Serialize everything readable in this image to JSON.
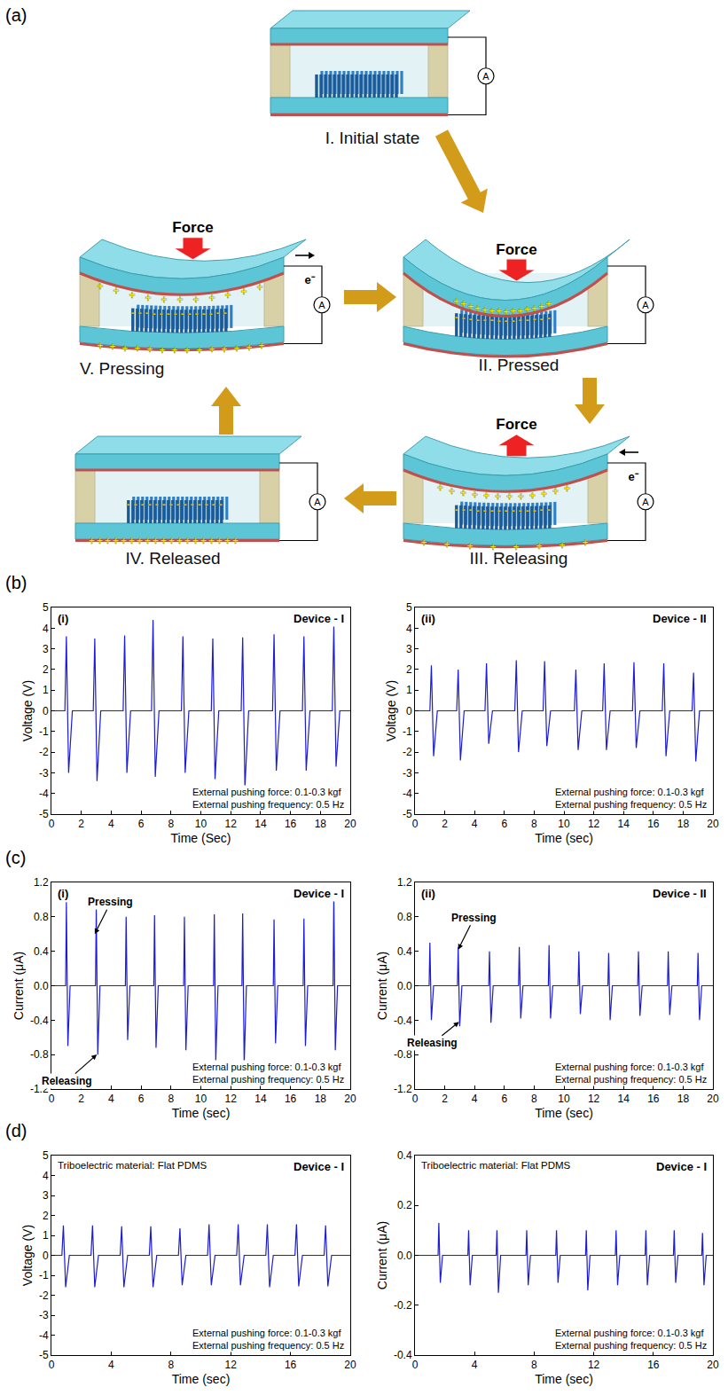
{
  "diagram": {
    "panel": "(a)",
    "stages": [
      {
        "label": "I. Initial state"
      },
      {
        "label": "II. Pressed"
      },
      {
        "label": "III. Releasing"
      },
      {
        "label": "IV. Released"
      },
      {
        "label": "V. Pressing"
      }
    ],
    "force_label": "Force",
    "ammeter_label": "A",
    "electron_label": "e⁻",
    "charge_signs": {
      "positive": "+",
      "negative": "-"
    }
  },
  "chart_data": [
    {
      "panel": "(b)",
      "sublabel": "(i)",
      "device_label": "Device - I",
      "type": "line",
      "color": "#1c1cd4",
      "grid": false,
      "x_label": "Time (Sec)",
      "y_label": "Voltage (V)",
      "xlim": [
        0,
        20
      ],
      "xticks": [
        0,
        2,
        4,
        6,
        8,
        10,
        12,
        14,
        16,
        18,
        20
      ],
      "ylim": [
        -5,
        5
      ],
      "yticks": [
        -5,
        -4,
        -3,
        -2,
        -1,
        0,
        1,
        2,
        3,
        4,
        5
      ],
      "notes": [
        "External pushing force: 0.1-0.3 kgf",
        "External pushing frequency: 0.5 Hz"
      ],
      "x": [
        0,
        0.9,
        1.0,
        1.15,
        1.4,
        2.8,
        2.9,
        3.05,
        3.3,
        4.8,
        4.9,
        5.05,
        5.3,
        6.7,
        6.8,
        6.95,
        7.2,
        8.7,
        8.8,
        8.95,
        9.2,
        10.7,
        10.8,
        10.95,
        11.2,
        12.7,
        12.8,
        12.95,
        13.2,
        14.8,
        14.9,
        15.05,
        15.3,
        16.8,
        16.9,
        17.05,
        17.3,
        18.8,
        18.9,
        19.05,
        19.3,
        20
      ],
      "values": [
        0,
        0,
        3.6,
        -3.0,
        0,
        0,
        3.5,
        -3.4,
        0,
        0,
        3.65,
        -3.0,
        0,
        0,
        4.4,
        -3.2,
        0,
        0,
        3.6,
        -3.0,
        0,
        0,
        3.5,
        -3.3,
        0,
        0,
        3.55,
        -3.7,
        0,
        0,
        3.7,
        -2.9,
        0,
        0,
        3.6,
        -2.9,
        0,
        0,
        4.1,
        -2.7,
        0,
        0
      ]
    },
    {
      "sublabel": "(ii)",
      "device_label": "Device - II",
      "type": "line",
      "color": "#1c1cd4",
      "grid": false,
      "x_label": "Time (sec)",
      "y_label": "Voltage (V)",
      "xlim": [
        0,
        20
      ],
      "xticks": [
        0,
        2,
        4,
        6,
        8,
        10,
        12,
        14,
        16,
        18,
        20
      ],
      "ylim": [
        -5,
        5
      ],
      "yticks": [
        -5,
        -4,
        -3,
        -2,
        -1,
        0,
        1,
        2,
        3,
        4,
        5
      ],
      "notes": [
        "External pushing force: 0.1-0.3 kgf",
        "External pushing frequency: 0.5 Hz"
      ],
      "x": [
        0,
        1.0,
        1.1,
        1.25,
        1.5,
        2.8,
        2.9,
        3.05,
        3.3,
        4.7,
        4.8,
        4.95,
        5.2,
        6.7,
        6.8,
        6.95,
        7.2,
        8.6,
        8.7,
        8.85,
        9.1,
        10.7,
        10.8,
        10.95,
        11.2,
        12.6,
        12.7,
        12.85,
        13.1,
        14.6,
        14.7,
        14.85,
        15.1,
        16.6,
        16.7,
        16.85,
        17.1,
        18.6,
        18.7,
        18.85,
        19.1,
        20
      ],
      "values": [
        0,
        0,
        2.2,
        -2.2,
        0,
        0,
        2.0,
        -2.4,
        0,
        0,
        2.3,
        -1.6,
        0,
        0,
        2.45,
        -2.0,
        0,
        0,
        2.4,
        -1.7,
        0,
        0,
        2.0,
        -1.9,
        0,
        0,
        2.3,
        -1.9,
        0,
        0,
        2.35,
        -1.8,
        0,
        0,
        2.3,
        -2.2,
        0,
        0,
        1.85,
        -2.45,
        0,
        0
      ]
    },
    {
      "panel": "(c)",
      "sublabel": "(i)",
      "device_label": "Device - I",
      "type": "line",
      "color": "#1c1cd4",
      "grid": false,
      "x_label": "Time (sec)",
      "y_label": "Current (μA)",
      "xlim": [
        0,
        20
      ],
      "xticks": [
        0,
        2,
        4,
        6,
        8,
        10,
        12,
        14,
        16,
        18,
        20
      ],
      "ylim": [
        -1.2,
        1.2
      ],
      "yticks": [
        -1.2,
        -0.8,
        -0.4,
        {
          "value": 0,
          "label": "0.0"
        },
        0.4,
        0.8,
        1.2
      ],
      "annotations": [
        "Pressing",
        "Releasing"
      ],
      "notes": [
        "External pushing force: 0.1-0.3 kgf",
        "External pushing frequency: 0.5 Hz"
      ],
      "x": [
        0,
        0.95,
        1.0,
        1.1,
        1.25,
        2.95,
        3.0,
        3.1,
        3.25,
        4.95,
        5.0,
        5.1,
        5.25,
        6.85,
        6.9,
        7.0,
        7.15,
        8.85,
        8.9,
        9.0,
        9.15,
        10.85,
        10.9,
        11.0,
        11.15,
        12.75,
        12.8,
        12.9,
        13.05,
        14.85,
        14.9,
        15.0,
        15.15,
        16.85,
        16.9,
        17.0,
        17.15,
        18.85,
        18.9,
        19.0,
        19.15,
        20
      ],
      "values": [
        0,
        0,
        0.97,
        -0.7,
        0,
        0,
        0.9,
        -0.8,
        0,
        0,
        0.8,
        -0.63,
        0,
        0,
        0.82,
        -0.72,
        0,
        0,
        0.8,
        -0.75,
        0,
        0,
        0.83,
        -0.87,
        0,
        0,
        0.84,
        -0.93,
        0,
        0,
        0.77,
        -0.67,
        0,
        0,
        0.78,
        -0.7,
        0,
        0,
        1.05,
        -0.75,
        0,
        0
      ]
    },
    {
      "sublabel": "(ii)",
      "device_label": "Device - II",
      "type": "line",
      "color": "#1c1cd4",
      "grid": false,
      "x_label": "Time (sec)",
      "y_label": "Current (μA)",
      "xlim": [
        0,
        20
      ],
      "xticks": [
        0,
        2,
        4,
        6,
        8,
        10,
        12,
        14,
        16,
        18,
        20
      ],
      "ylim": [
        -1.2,
        1.2
      ],
      "yticks": [
        -1.2,
        -0.8,
        -0.4,
        {
          "value": 0,
          "label": "0.0"
        },
        0.4,
        0.8,
        1.2
      ],
      "annotations": [
        "Pressing",
        "Releasing"
      ],
      "notes": [
        "External pushing force: 0.1-0.3 kgf",
        "External pushing frequency: 0.5 Hz"
      ],
      "x": [
        0,
        0.95,
        1.0,
        1.1,
        1.25,
        2.85,
        2.9,
        3.0,
        3.15,
        4.95,
        5.0,
        5.1,
        5.25,
        6.95,
        7.0,
        7.1,
        7.25,
        8.95,
        9.0,
        9.1,
        9.25,
        10.95,
        11.0,
        11.1,
        11.25,
        12.95,
        13.0,
        13.1,
        13.25,
        14.95,
        15.0,
        15.1,
        15.25,
        16.95,
        17.0,
        17.1,
        17.25,
        18.95,
        19.0,
        19.1,
        19.25,
        20
      ],
      "values": [
        0,
        0,
        0.5,
        -0.4,
        0,
        0,
        0.45,
        -0.47,
        0,
        0,
        0.4,
        -0.43,
        0,
        0,
        0.45,
        -0.38,
        0,
        0,
        0.47,
        -0.38,
        0,
        0,
        0.4,
        -0.33,
        0,
        0,
        0.38,
        -0.4,
        0,
        0,
        0.4,
        -0.35,
        0,
        0,
        0.4,
        -0.34,
        0,
        0,
        0.38,
        -0.4,
        0,
        0
      ]
    },
    {
      "panel": "(d)",
      "material_note": "Triboelectric material: Flat PDMS",
      "device_label": "Device - I",
      "type": "line",
      "color": "#1c1cd4",
      "grid": false,
      "x_label": "Time (sec)",
      "y_label": "Voltage (V)",
      "xlim": [
        0,
        20
      ],
      "xticks": [
        0,
        4,
        8,
        12,
        16,
        20
      ],
      "ylim": [
        -5,
        5
      ],
      "yticks": [
        -5,
        -4,
        -3,
        -2,
        -1,
        0,
        1,
        2,
        3,
        4,
        5
      ],
      "notes": [
        "External pushing force: 0.1-0.3 kgf",
        "External pushing frequency: 0.5 Hz"
      ],
      "x": [
        0,
        0.7,
        0.8,
        0.95,
        1.2,
        2.65,
        2.75,
        2.9,
        3.15,
        4.6,
        4.7,
        4.85,
        5.1,
        6.55,
        6.65,
        6.8,
        7.05,
        8.5,
        8.6,
        8.75,
        9.0,
        10.45,
        10.55,
        10.7,
        10.95,
        12.4,
        12.5,
        12.65,
        12.9,
        14.35,
        14.45,
        14.6,
        14.85,
        16.3,
        16.4,
        16.55,
        16.8,
        18.25,
        18.35,
        18.5,
        18.75,
        20
      ],
      "values": [
        0,
        0,
        1.5,
        -1.6,
        0,
        0,
        1.5,
        -1.6,
        0,
        0,
        1.45,
        -1.6,
        0,
        0,
        1.45,
        -1.6,
        0,
        0,
        1.35,
        -1.5,
        0,
        0,
        1.55,
        -1.5,
        0,
        0,
        1.55,
        -1.5,
        0,
        0,
        1.55,
        -1.6,
        0,
        0,
        1.55,
        -1.55,
        0,
        0,
        1.5,
        -1.55,
        0,
        0
      ]
    },
    {
      "material_note": "Triboelectric material: Flat PDMS",
      "device_label": "Device - I",
      "type": "line",
      "color": "#1c1cd4",
      "grid": false,
      "x_label": "Time (sec)",
      "y_label": "Current (μA)",
      "xlim": [
        0,
        20
      ],
      "xticks": [
        0,
        4,
        8,
        12,
        16,
        20
      ],
      "ylim": [
        -0.4,
        0.4
      ],
      "yticks": [
        -0.4,
        -0.2,
        {
          "value": 0,
          "label": "0.0"
        },
        0.2,
        0.4
      ],
      "notes": [
        "External pushing force: 0.1-0.3 kgf",
        "External pushing frequency: 0.5 Hz"
      ],
      "x": [
        0,
        1.55,
        1.6,
        1.7,
        1.85,
        3.55,
        3.6,
        3.7,
        3.85,
        5.45,
        5.5,
        5.6,
        5.75,
        7.45,
        7.5,
        7.6,
        7.75,
        9.45,
        9.5,
        9.6,
        9.75,
        11.45,
        11.5,
        11.6,
        11.75,
        13.45,
        13.5,
        13.6,
        13.75,
        15.45,
        15.5,
        15.6,
        15.75,
        17.35,
        17.4,
        17.5,
        17.65,
        19.25,
        19.3,
        19.4,
        19.55,
        20
      ],
      "values": [
        0,
        0,
        0.13,
        -0.11,
        0,
        0,
        0.1,
        -0.12,
        0,
        0,
        0.1,
        -0.15,
        0,
        0,
        0.1,
        -0.12,
        0,
        0,
        0.1,
        -0.11,
        0,
        0,
        0.1,
        -0.14,
        0,
        0,
        0.1,
        -0.12,
        0,
        0,
        0.1,
        -0.12,
        0,
        0,
        0.1,
        -0.11,
        0,
        0,
        0.09,
        -0.12,
        0,
        0
      ]
    }
  ]
}
